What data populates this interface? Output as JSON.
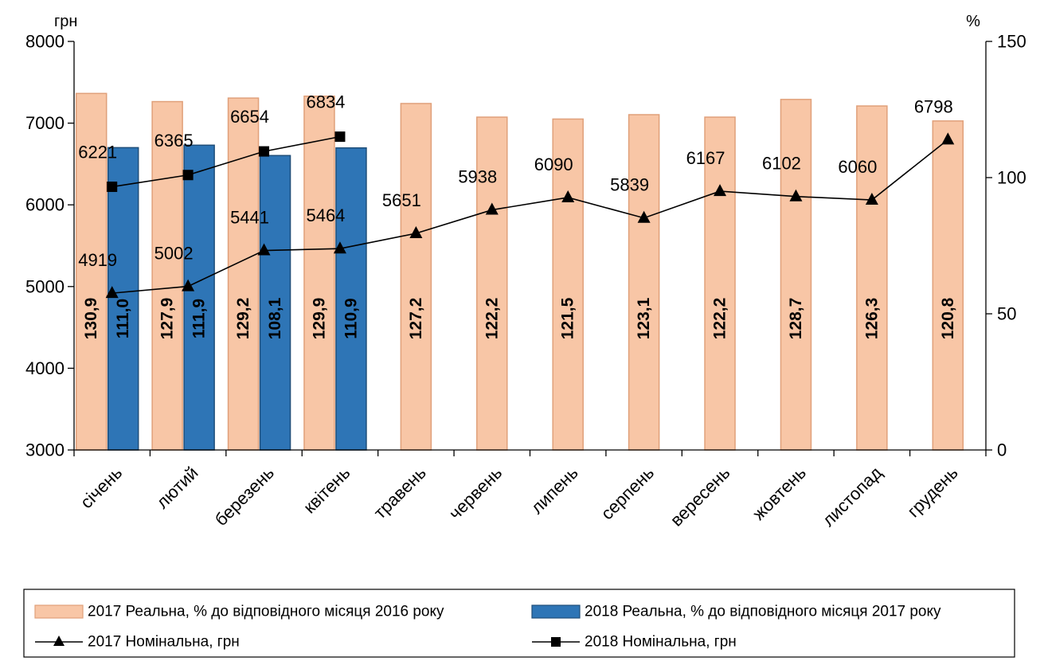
{
  "chart_data": {
    "type": "bar",
    "categories": [
      "січень",
      "лютий",
      "березень",
      "квітень",
      "травень",
      "червень",
      "липень",
      "серпень",
      "вересень",
      "жовтень",
      "листопад",
      "грудень"
    ],
    "left_axis": {
      "unit_label": "грн",
      "range": [
        3000,
        8000
      ],
      "ticks": [
        "3000",
        "4000",
        "5000",
        "6000",
        "7000",
        "8000"
      ]
    },
    "right_axis": {
      "unit_label": "%",
      "range": [
        0,
        150
      ],
      "ticks": [
        "0",
        "50",
        "100",
        "150"
      ]
    },
    "series": [
      {
        "name": "2017 Реальна, % до відповідного місяця 2016 року",
        "kind": "bar",
        "axis": "right",
        "values": [
          130.9,
          127.9,
          129.2,
          129.9,
          127.2,
          122.2,
          121.5,
          123.1,
          122.2,
          128.7,
          126.3,
          120.8
        ],
        "labels": [
          "130,9",
          "127,9",
          "129,2",
          "129,9",
          "127,2",
          "122,2",
          "121,5",
          "123,1",
          "122,2",
          "128,7",
          "126,3",
          "120,8"
        ],
        "color": "#F8C6A6",
        "border": "#E0A07A"
      },
      {
        "name": "2018 Реальна, % до відповідного місяця 2017 року",
        "kind": "bar",
        "axis": "right",
        "values": [
          111.0,
          111.9,
          108.1,
          110.9,
          null,
          null,
          null,
          null,
          null,
          null,
          null,
          null
        ],
        "labels": [
          "111,0",
          "111,9",
          "108,1",
          "110,9",
          "",
          "",
          "",
          "",
          "",
          "",
          "",
          ""
        ],
        "color": "#2E75B6",
        "border": "#1F4E79"
      },
      {
        "name": "2017 Номінальна, грн",
        "kind": "line",
        "axis": "left",
        "marker": "triangle",
        "values": [
          4919,
          5002,
          5441,
          5464,
          5651,
          5938,
          6090,
          5839,
          6167,
          6102,
          6060,
          6798
        ],
        "labels": [
          "4919",
          "5002",
          "5441",
          "5464",
          "5651",
          "5938",
          "6090",
          "5839",
          "6167",
          "6102",
          "6060",
          "6798"
        ]
      },
      {
        "name": "2018 Номінальна, грн",
        "kind": "line",
        "axis": "left",
        "marker": "square",
        "values": [
          6221,
          6365,
          6654,
          6834,
          null,
          null,
          null,
          null,
          null,
          null,
          null,
          null
        ],
        "labels": [
          "6221",
          "6365",
          "6654",
          "6834",
          "",
          "",
          "",
          "",
          "",
          "",
          "",
          ""
        ]
      }
    ],
    "legend": {
      "placement": "bottom",
      "items": [
        {
          "label": "2017 Реальна, % до відповідного місяця 2016 року",
          "swatch": "bar-2017"
        },
        {
          "label": "2018 Реальна, % до відповідного місяця 2017 року",
          "swatch": "bar-2018"
        },
        {
          "label": "2017 Номінальна, грн",
          "swatch": "line-triangle"
        },
        {
          "label": "2018 Номінальна, грн",
          "swatch": "line-square"
        }
      ]
    },
    "grid": false
  }
}
